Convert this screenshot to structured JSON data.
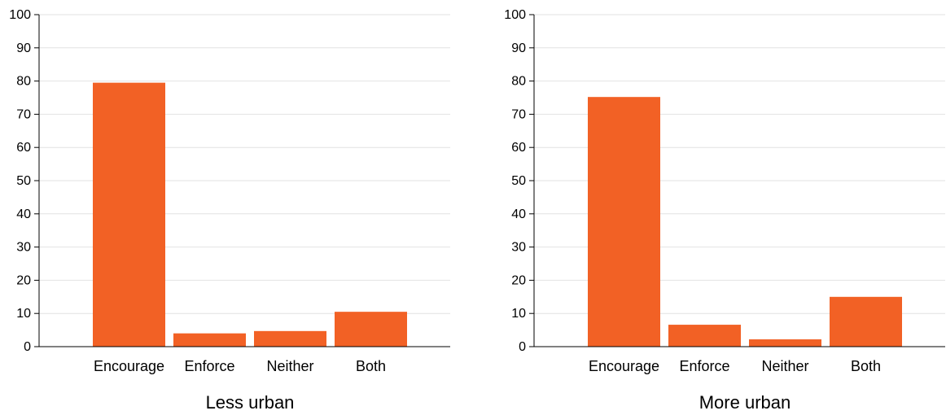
{
  "style": {
    "bar_color": "#f26125",
    "grid_color": "#e2e2e2",
    "axis_color": "#000000"
  },
  "chart_data": [
    {
      "type": "bar",
      "title": "Less urban",
      "categories": [
        "Encourage",
        "Enforce",
        "Neither",
        "Both"
      ],
      "values": [
        79.5,
        4.0,
        4.7,
        10.5
      ],
      "ylim": [
        0,
        100
      ],
      "yticks": [
        0,
        10,
        20,
        30,
        40,
        50,
        60,
        70,
        80,
        90,
        100
      ],
      "grid": true
    },
    {
      "type": "bar",
      "title": "More urban",
      "categories": [
        "Encourage",
        "Enforce",
        "Neither",
        "Both"
      ],
      "values": [
        75.2,
        6.6,
        2.2,
        15.0
      ],
      "ylim": [
        0,
        100
      ],
      "yticks": [
        0,
        10,
        20,
        30,
        40,
        50,
        60,
        70,
        80,
        90,
        100
      ],
      "grid": true
    }
  ]
}
